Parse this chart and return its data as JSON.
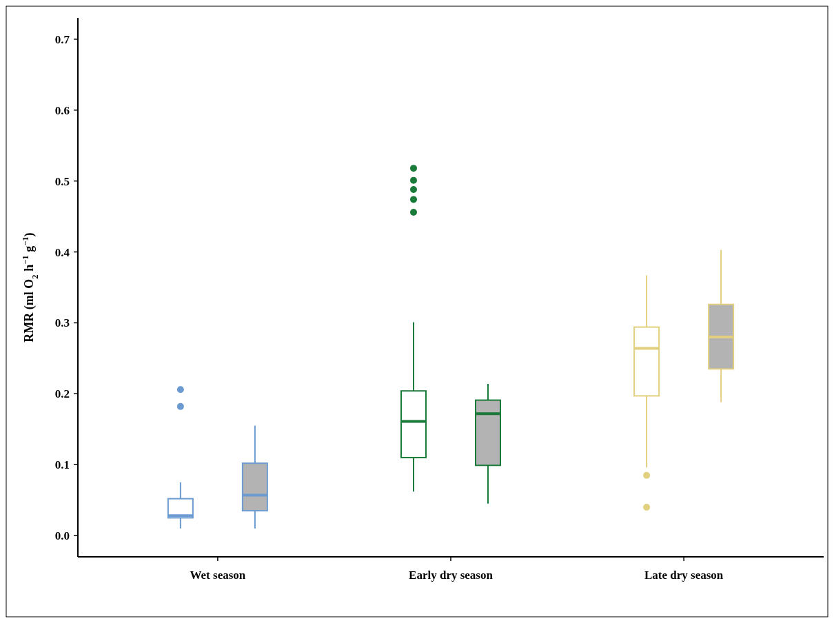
{
  "chart_data": {
    "type": "box",
    "ylabel": "RMR (ml O$_{2}$ h$^{−1}$ g$^{−1}$)",
    "categories": [
      "Wet season",
      "Early dry season",
      "Late dry season"
    ],
    "ylim": [
      -0.03,
      0.73
    ],
    "yticks": [
      {
        "value": 0,
        "label": "0.0"
      },
      0.1,
      0.2,
      0.3,
      0.4,
      0.5,
      0.6,
      0.7
    ],
    "grid": false,
    "series": [
      {
        "color": "#ffffff",
        "colors": [
          "#6b9bd1",
          "#1a7a3a",
          "#e0d080"
        ],
        "boxes": [
          {
            "low": 0.01,
            "q1": 0.025,
            "median": 0.028,
            "q3": 0.052,
            "high": 0.075,
            "outliers": [
              0.206,
              0.182
            ]
          },
          {
            "low": 0.062,
            "q1": 0.11,
            "median": 0.161,
            "q3": 0.204,
            "high": 0.301,
            "outliers": [
              0.518,
              0.501,
              0.488,
              0.474,
              0.456
            ]
          },
          {
            "low": 0.096,
            "q1": 0.197,
            "median": 0.264,
            "q3": 0.294,
            "high": 0.367,
            "outliers": [
              0.085,
              0.04
            ]
          }
        ]
      },
      {
        "color": "#b3b3b3",
        "colors": [
          "#6b9bd1",
          "#1a7a3a",
          "#e0d080"
        ],
        "boxes": [
          {
            "low": 0.01,
            "q1": 0.035,
            "median": 0.057,
            "q3": 0.102,
            "high": 0.155
          },
          {
            "low": 0.045,
            "q1": 0.099,
            "median": 0.172,
            "q3": 0.191,
            "high": 0.214
          },
          {
            "low": 0.188,
            "q1": 0.235,
            "median": 0.28,
            "q3": 0.326,
            "high": 0.403
          }
        ]
      }
    ]
  }
}
